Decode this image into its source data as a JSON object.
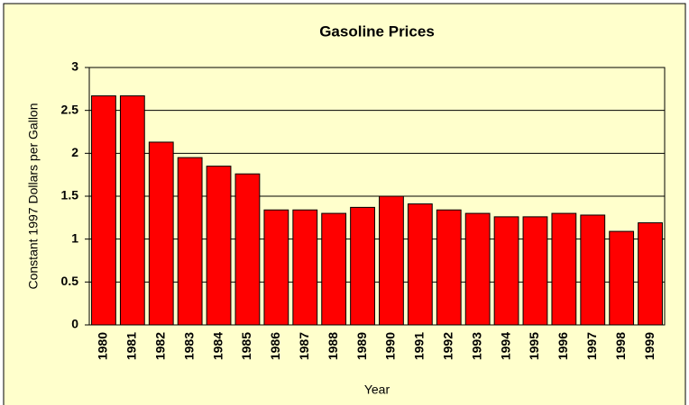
{
  "chart_data": {
    "type": "bar",
    "title": "Gasoline Prices",
    "x_label": "Year",
    "y_label": "Constant 1997 Dollars per Gallon",
    "categories": [
      "1980",
      "1981",
      "1982",
      "1983",
      "1984",
      "1985",
      "1986",
      "1987",
      "1988",
      "1989",
      "1990",
      "1991",
      "1992",
      "1993",
      "1994",
      "1995",
      "1996",
      "1997",
      "1998",
      "1999"
    ],
    "values": [
      2.67,
      2.67,
      2.13,
      1.95,
      1.85,
      1.76,
      1.34,
      1.34,
      1.3,
      1.37,
      1.5,
      1.41,
      1.34,
      1.3,
      1.26,
      1.26,
      1.3,
      1.28,
      1.09,
      1.19
    ],
    "color": "#ff0000",
    "ylim": [
      0,
      3
    ],
    "yticks": [
      0,
      0.5,
      1,
      1.5,
      2,
      2.5,
      3
    ],
    "grid": true
  }
}
